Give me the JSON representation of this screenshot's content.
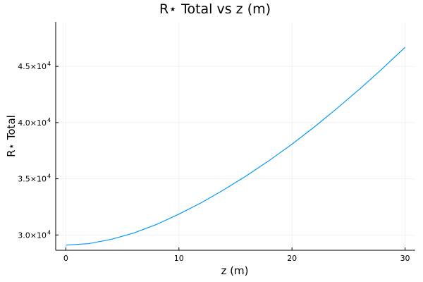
{
  "chart_data": {
    "type": "line",
    "title": "R⋆ Total vs z (m)",
    "xlabel": "z (m)",
    "ylabel": "R⋆ Total",
    "xlim": [
      -0.9,
      30.9
    ],
    "ylim": [
      28640,
      48960
    ],
    "xticks": [
      {
        "value": 0,
        "label": "0"
      },
      {
        "value": 10,
        "label": "10"
      },
      {
        "value": 20,
        "label": "20"
      },
      {
        "value": 30,
        "label": "30"
      }
    ],
    "yticks": [
      {
        "value": 30000,
        "mantissa": "3.0×10",
        "exponent": "4"
      },
      {
        "value": 35000,
        "mantissa": "3.5×10",
        "exponent": "4"
      },
      {
        "value": 40000,
        "mantissa": "4.0×10",
        "exponent": "4"
      },
      {
        "value": 45000,
        "mantissa": "4.5×10",
        "exponent": "4"
      }
    ],
    "grid": true,
    "legend": false,
    "series_color": "#009af9",
    "series": [
      {
        "x": [
          0,
          2,
          4,
          6,
          8,
          10,
          12,
          14,
          16,
          18,
          20,
          22,
          24,
          26,
          28,
          30
        ],
        "y": [
          29100,
          29230,
          29610,
          30170,
          30930,
          31860,
          32880,
          34040,
          35290,
          36640,
          38080,
          39630,
          41280,
          43000,
          44800,
          46700
        ]
      }
    ]
  }
}
